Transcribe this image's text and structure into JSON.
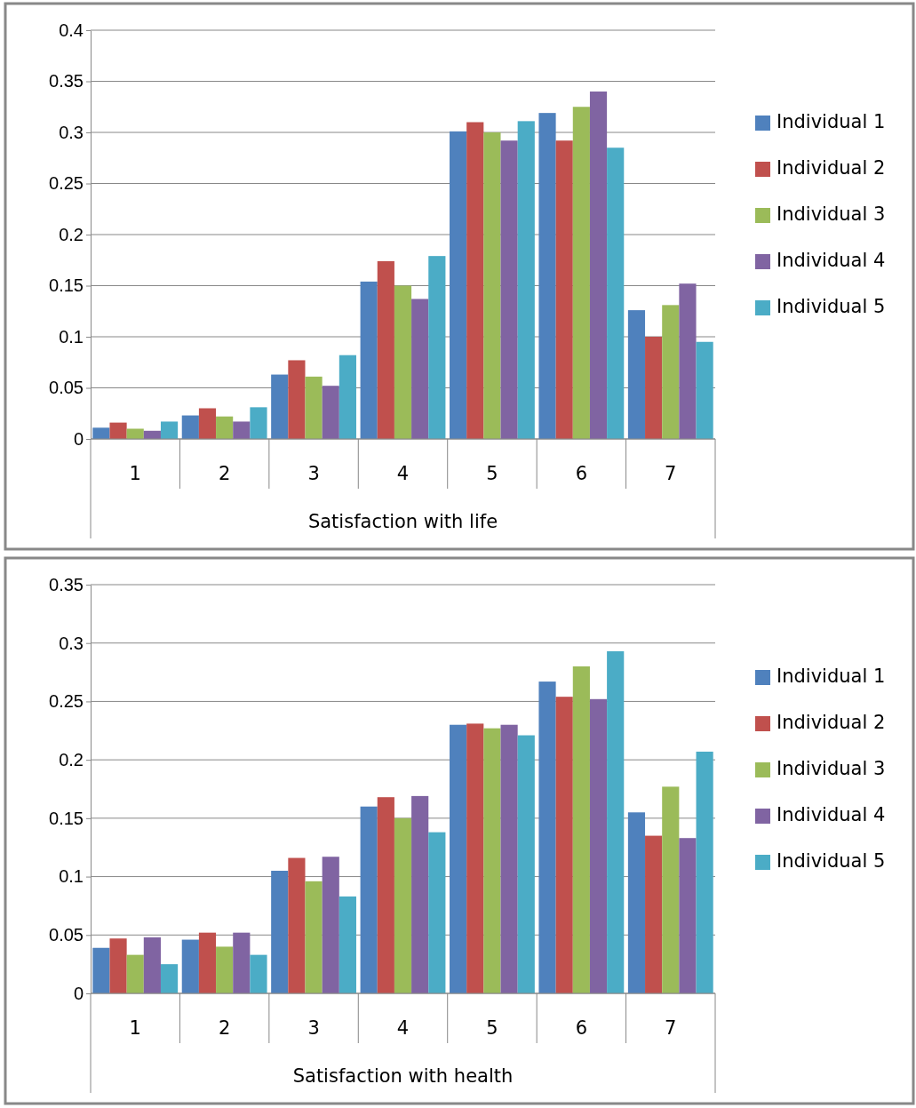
{
  "chart_data": [
    {
      "type": "bar",
      "xlabel": "Satisfaction with life",
      "categories": [
        "1",
        "2",
        "3",
        "4",
        "5",
        "6",
        "7"
      ],
      "ylim": [
        0,
        0.4
      ],
      "yticks": [
        0,
        0.05,
        0.1,
        0.15,
        0.2,
        0.25,
        0.3,
        0.35,
        0.4
      ],
      "grid": "y",
      "legend": "right",
      "series": [
        {
          "name": "Individual 1",
          "color": "#4f81bd",
          "values": [
            0.011,
            0.023,
            0.063,
            0.154,
            0.301,
            0.319,
            0.126
          ]
        },
        {
          "name": "Individual 2",
          "color": "#c0504d",
          "values": [
            0.016,
            0.03,
            0.077,
            0.174,
            0.31,
            0.292,
            0.1
          ]
        },
        {
          "name": "Individual 3",
          "color": "#9bbb59",
          "values": [
            0.01,
            0.022,
            0.061,
            0.15,
            0.3,
            0.325,
            0.131
          ]
        },
        {
          "name": "Individual 4",
          "color": "#8064a2",
          "values": [
            0.008,
            0.017,
            0.052,
            0.137,
            0.292,
            0.34,
            0.152
          ]
        },
        {
          "name": "Individual 5",
          "color": "#4bacc6",
          "values": [
            0.017,
            0.031,
            0.082,
            0.179,
            0.311,
            0.285,
            0.095
          ]
        }
      ]
    },
    {
      "type": "bar",
      "xlabel": "Satisfaction with health",
      "categories": [
        "1",
        "2",
        "3",
        "4",
        "5",
        "6",
        "7"
      ],
      "ylim": [
        0,
        0.35
      ],
      "yticks": [
        0,
        0.05,
        0.1,
        0.15,
        0.2,
        0.25,
        0.3,
        0.35
      ],
      "grid": "y",
      "legend": "right",
      "series": [
        {
          "name": "Individual 1",
          "color": "#4f81bd",
          "values": [
            0.039,
            0.046,
            0.105,
            0.16,
            0.23,
            0.267,
            0.155
          ]
        },
        {
          "name": "Individual 2",
          "color": "#c0504d",
          "values": [
            0.047,
            0.052,
            0.116,
            0.168,
            0.231,
            0.254,
            0.135
          ]
        },
        {
          "name": "Individual 3",
          "color": "#9bbb59",
          "values": [
            0.033,
            0.04,
            0.096,
            0.15,
            0.227,
            0.28,
            0.177
          ]
        },
        {
          "name": "Individual 4",
          "color": "#8064a2",
          "values": [
            0.048,
            0.052,
            0.117,
            0.169,
            0.23,
            0.252,
            0.133
          ]
        },
        {
          "name": "Individual 5",
          "color": "#4bacc6",
          "values": [
            0.025,
            0.033,
            0.083,
            0.138,
            0.221,
            0.293,
            0.207
          ]
        }
      ]
    }
  ]
}
